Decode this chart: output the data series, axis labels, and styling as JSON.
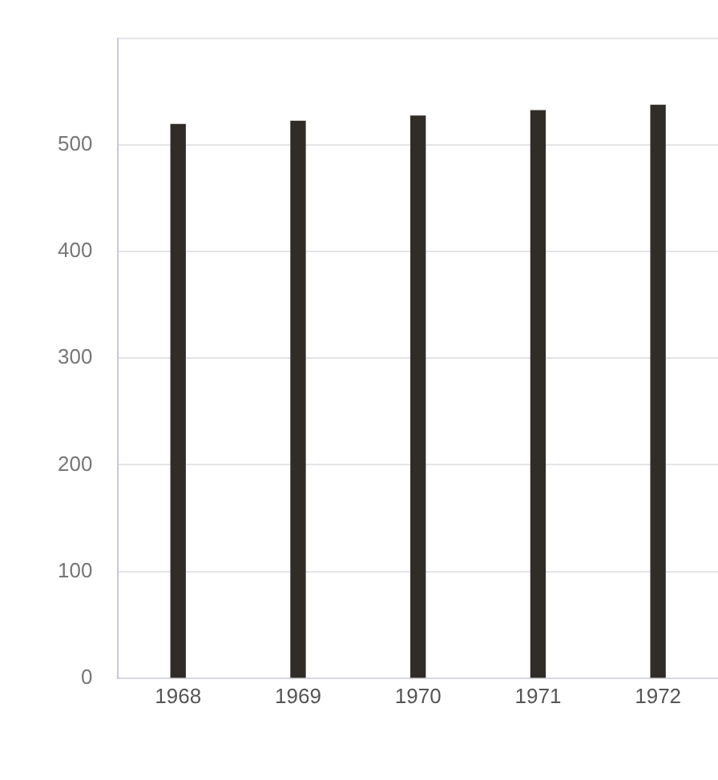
{
  "chart_data": {
    "type": "bar",
    "categories": [
      "1968",
      "1969",
      "1970",
      "1971",
      "1972"
    ],
    "values": [
      519,
      522,
      527,
      532,
      537
    ],
    "color": "#302c28",
    "ylim": [
      0,
      600
    ],
    "yticks": [
      0,
      100,
      200,
      300,
      400,
      500,
      {
        "value": 600,
        "label": null
      }
    ],
    "grid": "y",
    "legend": false
  }
}
